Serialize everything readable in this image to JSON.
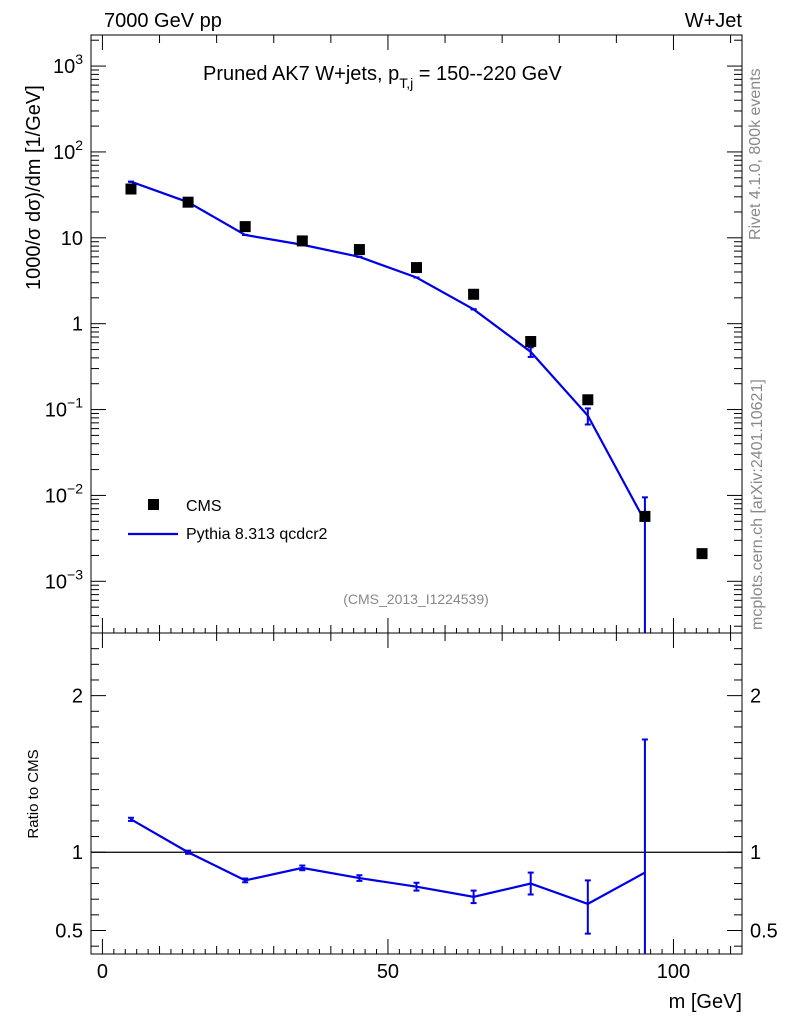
{
  "header": {
    "left": "7000 GeV pp",
    "right": "W+Jet"
  },
  "side_labels": {
    "rivet": "Rivet 4.1.0,  800k events",
    "mcplots": "mcplots.cern.ch [arXiv:2401.10621]"
  },
  "colors": {
    "mc": "#0000e6",
    "data": "#000000",
    "watermark": "#888888"
  },
  "chart_data": [
    {
      "type": "scatter",
      "panel": "main",
      "title": "Pruned AK7 W+jets, p",
      "title_sub": "T,j",
      "title_tail": " = 150--220 GeV",
      "watermark": "(CMS_2013_I1224539)",
      "ylabel": "1000/σ   dσ)/dm [1/GeV]",
      "xlabel": "m [GeV]",
      "yscale": "log",
      "ylim": [
        0.00025,
        2300
      ],
      "xlim": [
        -2,
        112
      ],
      "y_ticks": [
        {
          "v": 0.001,
          "base": "10",
          "exp": "−3"
        },
        {
          "v": 0.01,
          "base": "10",
          "exp": "−2"
        },
        {
          "v": 0.1,
          "base": "10",
          "exp": "−1"
        },
        {
          "v": 1,
          "base": "1",
          "exp": ""
        },
        {
          "v": 10,
          "base": "10",
          "exp": ""
        },
        {
          "v": 100,
          "base": "10",
          "exp": "2"
        },
        {
          "v": 1000,
          "base": "10",
          "exp": "3"
        }
      ],
      "legend": [
        {
          "name": "CMS",
          "kind": "marker"
        },
        {
          "name": "Pythia 8.313 qcdcr2",
          "kind": "line"
        }
      ],
      "series": [
        {
          "name": "CMS",
          "x": [
            5,
            15,
            25,
            35,
            45,
            55,
            65,
            75,
            85,
            95,
            105
          ],
          "values": [
            37,
            26,
            13.5,
            9.2,
            7.3,
            4.5,
            2.2,
            0.62,
            0.13,
            0.0057,
            0.0021
          ]
        },
        {
          "name": "Pythia 8.313 qcdcr2",
          "x": [
            5,
            15,
            25,
            35,
            45,
            55,
            65,
            75,
            85,
            95
          ],
          "values": [
            45,
            26,
            10.8,
            8.3,
            6.0,
            3.45,
            1.47,
            0.47,
            0.085,
            0.005
          ],
          "err_low": [
            0,
            0,
            0,
            0,
            0,
            0,
            0,
            0.06,
            0.018,
            0.0049
          ],
          "err_high": [
            0,
            0,
            0,
            0,
            0,
            0,
            0,
            0.06,
            0.018,
            0.0045
          ]
        }
      ]
    },
    {
      "type": "line",
      "panel": "ratio",
      "ylabel": "Ratio to CMS",
      "ylim": [
        0.35,
        2.4
      ],
      "y_ticks": [
        {
          "v": 0.5,
          "label": "0.5"
        },
        {
          "v": 1,
          "label": "1"
        },
        {
          "v": 2,
          "label": "2"
        }
      ],
      "x_ticks": [
        {
          "v": 0,
          "label": "0"
        },
        {
          "v": 50,
          "label": "50"
        },
        {
          "v": 100,
          "label": "100"
        }
      ],
      "series": [
        {
          "name": "Pythia 8.313 qcdcr2 / CMS",
          "x": [
            5,
            15,
            25,
            35,
            45,
            55,
            65,
            75,
            85,
            95
          ],
          "values": [
            1.21,
            1.0,
            0.82,
            0.9,
            0.835,
            0.78,
            0.715,
            0.8,
            0.67,
            0.87
          ],
          "err_low": [
            0.01,
            0.01,
            0.012,
            0.015,
            0.018,
            0.025,
            0.04,
            0.07,
            0.19,
            0.6
          ],
          "err_high": [
            0.01,
            0.01,
            0.012,
            0.015,
            0.018,
            0.025,
            0.04,
            0.07,
            0.15,
            0.85
          ]
        }
      ]
    }
  ]
}
